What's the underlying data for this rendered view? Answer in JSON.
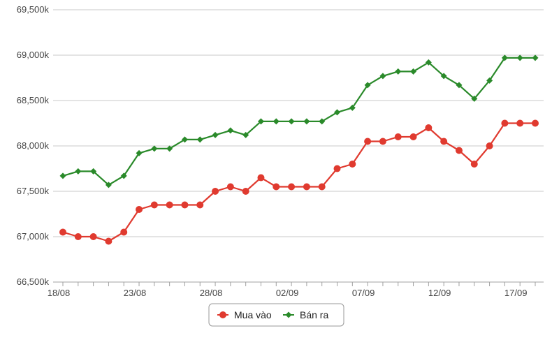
{
  "chart_data": {
    "type": "line",
    "title": "",
    "xlabel": "",
    "ylabel": "",
    "y_tick_labels": [
      "66,500k",
      "67,000k",
      "67,500k",
      "68,000k",
      "68,500k",
      "69,000k",
      "69,500k"
    ],
    "y_tick_values": [
      66500,
      67000,
      67500,
      68000,
      68500,
      69000,
      69500
    ],
    "ylim": [
      66500,
      69500
    ],
    "x_tick_labels": [
      "18/08",
      "23/08",
      "28/08",
      "02/09",
      "07/09",
      "12/09",
      "17/09"
    ],
    "x_tick_indices": [
      0,
      5,
      10,
      15,
      20,
      25,
      30
    ],
    "categories": [
      "18/08",
      "19/08",
      "20/08",
      "21/08",
      "22/08",
      "23/08",
      "24/08",
      "25/08",
      "26/08",
      "27/08",
      "28/08",
      "29/08",
      "30/08",
      "31/08",
      "01/09",
      "02/09",
      "03/09",
      "04/09",
      "05/09",
      "06/09",
      "07/09",
      "08/09",
      "09/09",
      "10/09",
      "11/09",
      "12/09",
      "13/09",
      "14/09",
      "15/09",
      "16/09",
      "17/09",
      "18/09"
    ],
    "grid": true,
    "legend_position": "bottom-center",
    "series": [
      {
        "name": "Mua vào",
        "color": "#e03a2f",
        "marker": "circle",
        "values": [
          67050,
          67000,
          67000,
          66950,
          67050,
          67300,
          67350,
          67350,
          67350,
          67350,
          67500,
          67550,
          67500,
          67650,
          67550,
          67550,
          67550,
          67550,
          67750,
          67800,
          68050,
          68050,
          68100,
          68100,
          68200,
          68050,
          67950,
          67800,
          68000,
          68250,
          68250,
          68250
        ]
      },
      {
        "name": "Bán ra",
        "color": "#2a8a2a",
        "marker": "diamond",
        "values": [
          67670,
          67720,
          67720,
          67570,
          67670,
          67920,
          67970,
          67970,
          68070,
          68070,
          68120,
          68170,
          68120,
          68270,
          68270,
          68270,
          68270,
          68270,
          68370,
          68420,
          68670,
          68770,
          68820,
          68820,
          68920,
          68770,
          68670,
          68520,
          68720,
          68970,
          68970,
          68970
        ]
      }
    ]
  }
}
